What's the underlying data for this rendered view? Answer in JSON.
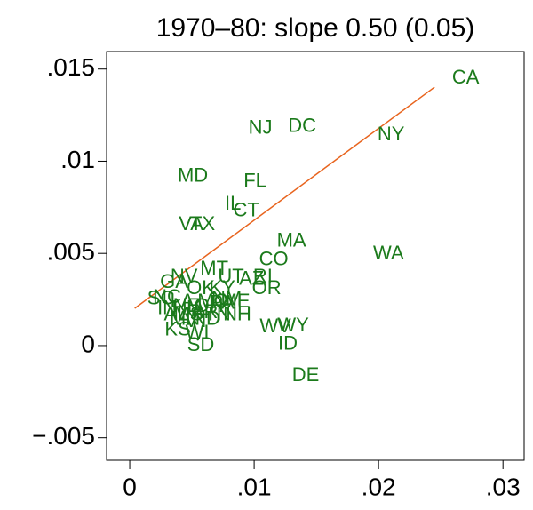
{
  "chart_data": {
    "type": "scatter",
    "title": "1970–80: slope 0.50 (0.05)",
    "xlim": [
      -0.00186,
      0.0317
    ],
    "ylim": [
      -0.00622,
      0.01595
    ],
    "xticks": [
      0,
      {
        "value": 0.01,
        "label": ".01"
      },
      {
        "value": 0.02,
        "label": ".02"
      },
      {
        "value": 0.03,
        "label": ".03"
      }
    ],
    "yticks": [
      {
        "value": -0.005,
        "label": "−.005"
      },
      0,
      {
        "value": 0.005,
        "label": ".005"
      },
      {
        "value": 0.01,
        "label": ".01"
      },
      {
        "value": 0.015,
        "label": ".015"
      }
    ],
    "series": [
      {
        "color": "#1b7a1b",
        "labels": [
          "CA",
          "NJ",
          "DC",
          "NY",
          "MD",
          "FL",
          "IL",
          "CT",
          "VA",
          "TX",
          "MA",
          "WA",
          "CO",
          "NV",
          "MT",
          "UT",
          "AZ",
          "RI",
          "OR",
          "GA",
          "OK",
          "KY",
          "SC",
          "NH",
          "WY",
          "WV",
          "ID",
          "DE",
          "SD",
          "KS",
          "WI",
          "IN",
          "NE",
          "IA",
          "MO",
          "NM",
          "AL",
          "MS",
          "AR",
          "LA",
          "TN",
          "OH",
          "PA",
          "MN",
          "ND",
          "VT",
          "ME",
          "NC"
        ],
        "x": [
          0.027,
          0.0105,
          0.01386,
          0.021,
          0.00507,
          0.01007,
          0.00829,
          0.00936,
          0.00493,
          0.00586,
          0.013,
          0.0208,
          0.01157,
          0.00436,
          0.00679,
          0.00814,
          0.00979,
          0.0107,
          0.011,
          0.00357,
          0.00571,
          0.00743,
          0.0025,
          0.00864,
          0.01314,
          0.01171,
          0.01271,
          0.01414,
          0.00571,
          0.00386,
          0.00543,
          0.003,
          0.00457,
          0.00529,
          0.00671,
          0.00779,
          0.00371,
          0.00471,
          0.006,
          0.00421,
          0.00707,
          0.00636,
          0.00743,
          0.00443,
          0.00614,
          0.00543,
          0.0085,
          0.003
        ],
        "values": [
          0.0145,
          0.01176,
          0.01186,
          0.01142,
          0.00916,
          0.00887,
          0.00766,
          0.00728,
          0.00655,
          0.00655,
          0.00564,
          0.00496,
          0.00463,
          0.00371,
          0.00414,
          0.00371,
          0.00357,
          0.00371,
          0.00308,
          0.00342,
          0.00308,
          0.00308,
          0.00251,
          0.00164,
          0.00106,
          0.00101,
          5e-05,
          -0.00164,
          0.0,
          0.00082,
          0.00067,
          0.00198,
          0.00212,
          0.00198,
          0.00236,
          0.00246,
          0.00164,
          0.00164,
          0.00178,
          0.00236,
          0.00164,
          0.00212,
          0.00227,
          0.0014,
          0.0014,
          0.0013,
          0.00236,
          0.0026
        ]
      }
    ],
    "fit_line": {
      "color": "#e8641e",
      "x": [
        0.0004,
        0.0245
      ],
      "values": [
        0.00202,
        0.01402
      ]
    }
  }
}
